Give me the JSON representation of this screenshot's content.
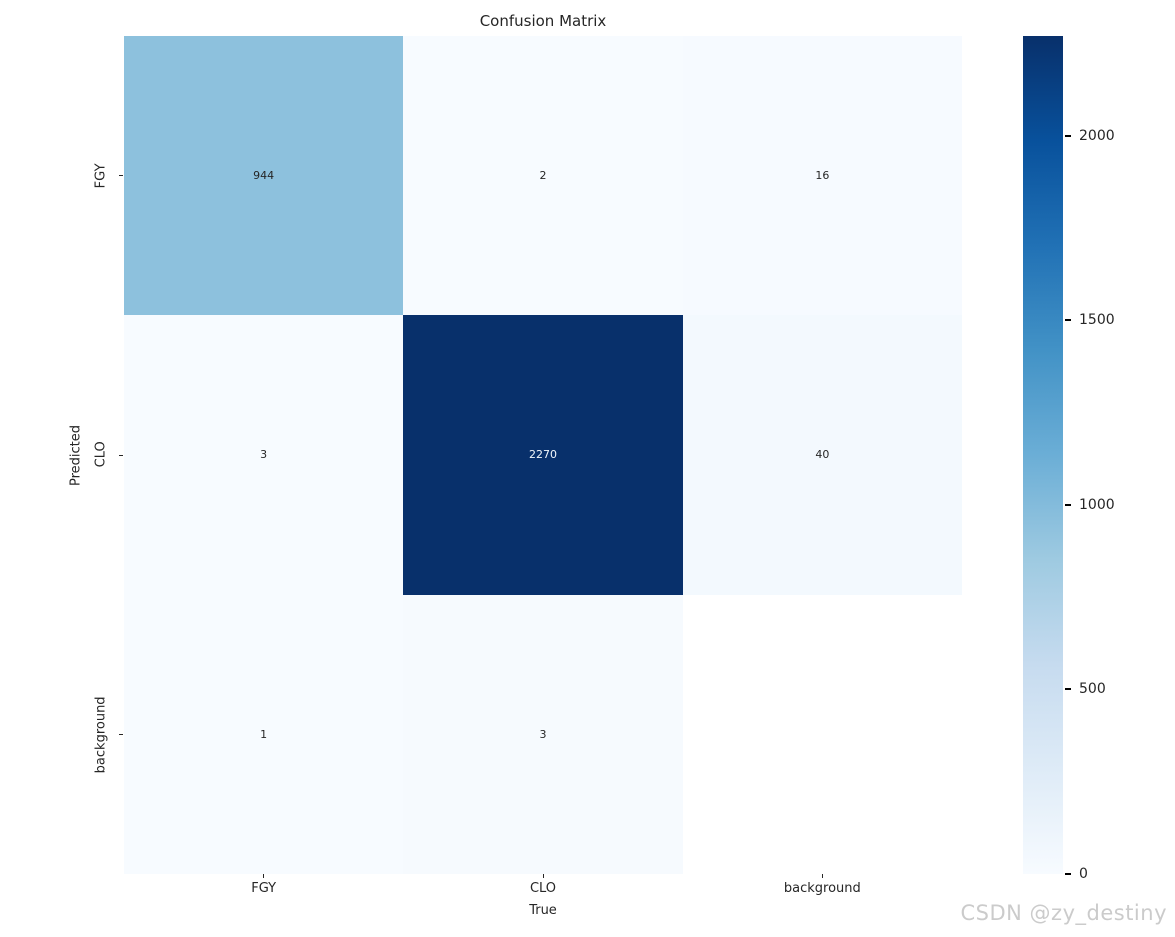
{
  "title": "Confusion Matrix",
  "watermark": "CSDN @zy_destiny",
  "chart_data": {
    "type": "heatmap",
    "title": "Confusion Matrix",
    "xlabel": "True",
    "ylabel": "Predicted",
    "x_categories": [
      "FGY",
      "CLO",
      "background"
    ],
    "y_categories": [
      "FGY",
      "CLO",
      "background"
    ],
    "matrix": [
      [
        944,
        2,
        16
      ],
      [
        3,
        2270,
        40
      ],
      [
        1,
        3,
        null
      ]
    ],
    "colormap": "Blues",
    "vmin": 0,
    "vmax": 2270,
    "grid": false,
    "legend_position": "colorbar-right",
    "cells": [
      {
        "value": "944",
        "bg": "#8dc1dd",
        "fg": "#262626"
      },
      {
        "value": "2",
        "bg": "#f7fbff",
        "fg": "#262626"
      },
      {
        "value": "16",
        "bg": "#f6faff",
        "fg": "#262626"
      },
      {
        "value": "3",
        "bg": "#f7fbff",
        "fg": "#262626"
      },
      {
        "value": "2270",
        "bg": "#08306b",
        "fg": "#f2f7fc"
      },
      {
        "value": "40",
        "bg": "#f3f9fe",
        "fg": "#262626"
      },
      {
        "value": "1",
        "bg": "#f7fbff",
        "fg": "#262626"
      },
      {
        "value": "3",
        "bg": "#f6fafe",
        "fg": "#262626"
      },
      {
        "value": "",
        "bg": "#ffffff",
        "fg": "#262626"
      }
    ],
    "colorbar": {
      "ticks": [
        0,
        500,
        1000,
        1500,
        2000
      ],
      "max_value": 2270,
      "gradient_stops": [
        "#08306b 0%",
        "#08519c 12.5%",
        "#2171b5 25%",
        "#4292c6 37.5%",
        "#6baed6 50%",
        "#9ecae1 62.5%",
        "#c6dbef 75%",
        "#deebf7 87.5%",
        "#f7fbff 100%"
      ]
    }
  }
}
